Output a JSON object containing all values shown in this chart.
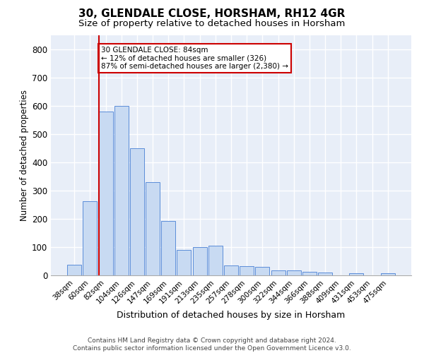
{
  "title1": "30, GLENDALE CLOSE, HORSHAM, RH12 4GR",
  "title2": "Size of property relative to detached houses in Horsham",
  "xlabel": "Distribution of detached houses by size in Horsham",
  "ylabel": "Number of detached properties",
  "footer1": "Contains HM Land Registry data © Crown copyright and database right 2024.",
  "footer2": "Contains public sector information licensed under the Open Government Licence v3.0.",
  "annotation_title": "30 GLENDALE CLOSE: 84sqm",
  "annotation_line1": "← 12% of detached houses are smaller (326)",
  "annotation_line2": "87% of semi-detached houses are larger (2,380) →",
  "bar_color": "#c8daf2",
  "bar_edge_color": "#5b8dd9",
  "marker_line_color": "#cc0000",
  "annotation_box_edgecolor": "#cc0000",
  "annotation_box_facecolor": "#ffffff",
  "fig_facecolor": "#ffffff",
  "ax_facecolor": "#e8eef8",
  "grid_color": "#ffffff",
  "categories": [
    "38sqm",
    "60sqm",
    "82sqm",
    "104sqm",
    "126sqm",
    "147sqm",
    "169sqm",
    "191sqm",
    "213sqm",
    "235sqm",
    "257sqm",
    "278sqm",
    "300sqm",
    "322sqm",
    "344sqm",
    "366sqm",
    "388sqm",
    "409sqm",
    "431sqm",
    "453sqm",
    "475sqm"
  ],
  "values": [
    38,
    262,
    580,
    600,
    450,
    330,
    193,
    90,
    100,
    104,
    36,
    32,
    30,
    18,
    17,
    12,
    10,
    0,
    7,
    0,
    7
  ],
  "ylim": [
    0,
    850
  ],
  "yticks": [
    0,
    100,
    200,
    300,
    400,
    500,
    600,
    700,
    800
  ],
  "marker_bar_index": 2,
  "title1_fontsize": 11,
  "title2_fontsize": 9.5,
  "axis_ylabel_fontsize": 8.5,
  "axis_xlabel_fontsize": 9,
  "tick_fontsize": 7.5,
  "annotation_fontsize": 7.5,
  "footer_fontsize": 6.5
}
